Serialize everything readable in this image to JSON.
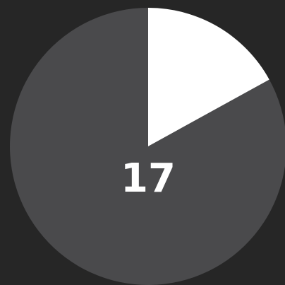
{
  "chart_data": {
    "type": "pie",
    "values": [
      17,
      83
    ],
    "colors": [
      "#ffffff",
      "#4a4a4c"
    ]
  }
}
